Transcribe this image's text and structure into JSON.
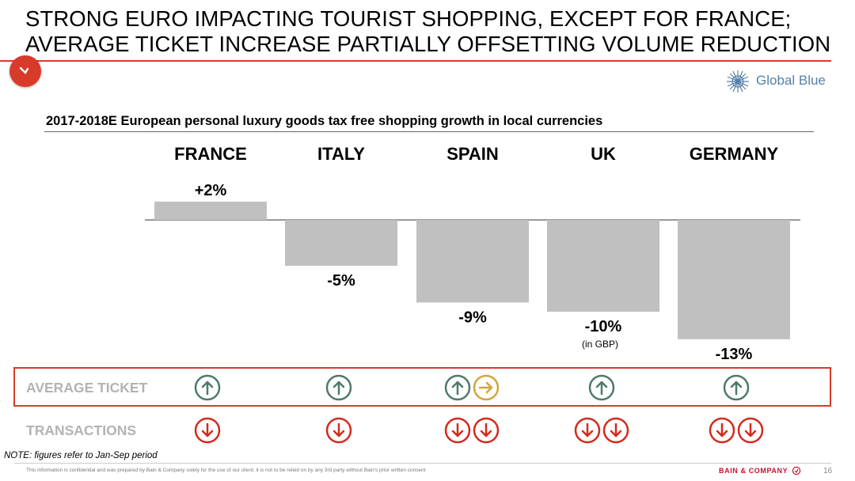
{
  "slide": {
    "title_line1": "STRONG EURO IMPACTING TOURIST SHOPPING, EXCEPT FOR FRANCE;",
    "title_line2": "AVERAGE TICKET INCREASE PARTIALLY OFFSETTING VOLUME REDUCTION",
    "logo_text": "Global Blue",
    "note": "NOTE: figures refer to Jan-Sep period",
    "disclaimer": "This information is confidential and was prepared by Bain & Company solely for the use of our client; it is not to be relied on by any 3rd party without Bain's prior written consent",
    "brand": "BAIN & COMPANY",
    "page_number": "16",
    "accent_color": "#d83b2a",
    "logo_color": "#5580a7"
  },
  "rows": {
    "average_ticket_label": "AVERAGE TICKET",
    "transactions_label": "TRANSACTIONS"
  },
  "chart_data": {
    "type": "bar",
    "title": "2017-2018E European personal luxury goods tax free shopping growth in local currencies",
    "categories": [
      "FRANCE",
      "ITALY",
      "SPAIN",
      "UK",
      "GERMANY"
    ],
    "values": [
      2,
      -5,
      -9,
      -10,
      -13
    ],
    "value_labels": [
      "+2%",
      "-5%",
      "-9%",
      "-10%",
      "-13%"
    ],
    "annotations": [
      "",
      "",
      "",
      "(in GBP)",
      ""
    ],
    "bar_color": "#c0c0c0",
    "grid": false,
    "average_ticket": [
      [
        "up"
      ],
      [
        "up"
      ],
      [
        "up",
        "right"
      ],
      [
        "up"
      ],
      [
        "up"
      ]
    ],
    "transactions": [
      [
        "down"
      ],
      [
        "down"
      ],
      [
        "down",
        "down"
      ],
      [
        "down",
        "down"
      ],
      [
        "down",
        "down"
      ]
    ],
    "icon_colors": {
      "up": "#4e7a68",
      "right": "#d4a43a",
      "down": "#d42a1e"
    }
  }
}
